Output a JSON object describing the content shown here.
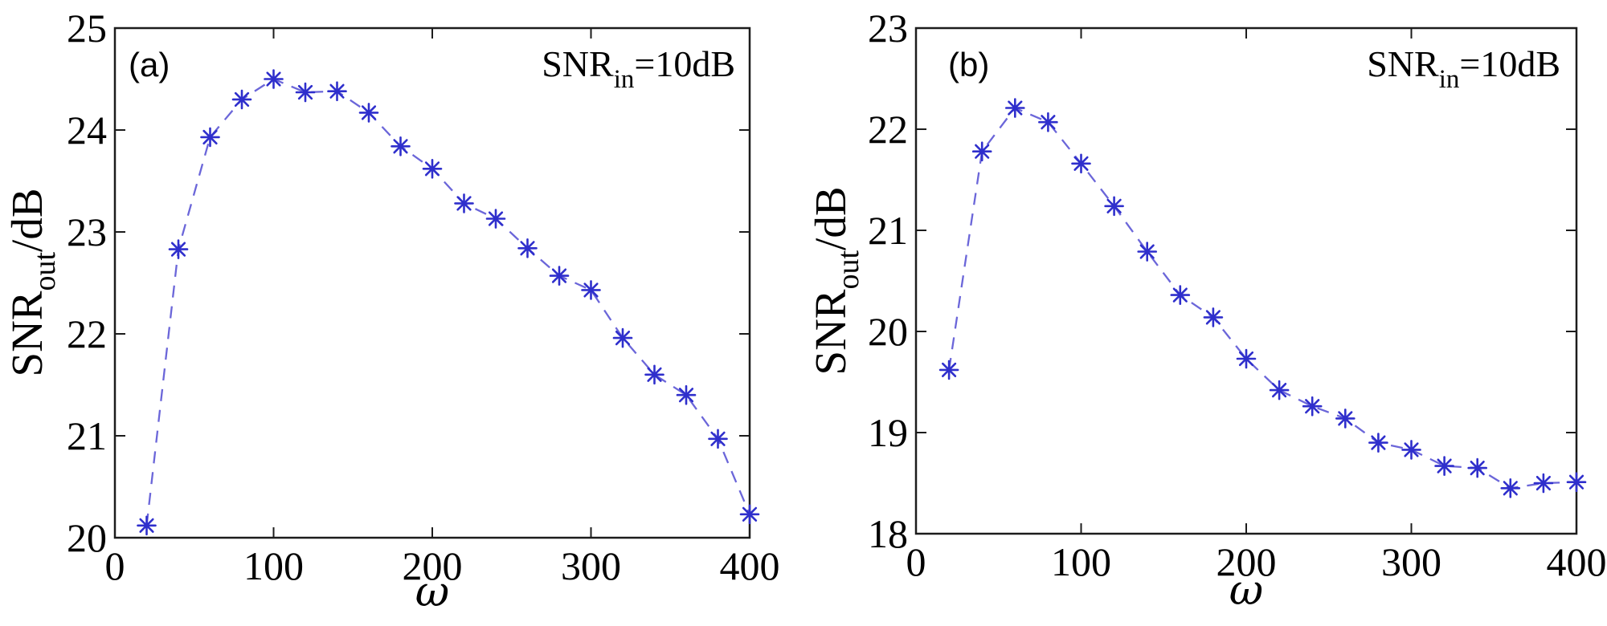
{
  "page": {
    "background": "#ffffff"
  },
  "colors": {
    "axis": "#1c1c1c",
    "marker": "#2f2fcc",
    "line": "#6b66d9"
  },
  "chart_data": [
    {
      "type": "line",
      "panel_label": "(a)",
      "annotation": "SNRin=10dB",
      "annotation_parts": {
        "main": "SNR",
        "sub": "in",
        "rest": "=10dB"
      },
      "ylabel": "SNRout/dB",
      "ylabel_parts": {
        "main": "SNR",
        "sub": "out",
        "rest": "/dB"
      },
      "xlabel": "ω",
      "xlim": [
        0,
        400
      ],
      "ylim": [
        20,
        25
      ],
      "xticks": [
        0,
        100,
        200,
        300,
        400
      ],
      "yticks": [
        20,
        21,
        22,
        23,
        24,
        25
      ],
      "grid": false,
      "legend": "none",
      "line_style": "dashed",
      "marker": "asterisk",
      "series": [
        {
          "name": "SNR_out vs omega",
          "x": [
            20,
            40,
            60,
            80,
            100,
            120,
            140,
            160,
            180,
            200,
            220,
            240,
            260,
            280,
            300,
            320,
            340,
            360,
            380,
            400
          ],
          "y": [
            20.12,
            22.83,
            23.93,
            24.3,
            24.5,
            24.37,
            24.38,
            24.17,
            23.84,
            23.62,
            23.28,
            23.13,
            22.84,
            22.57,
            22.43,
            21.96,
            21.6,
            21.4,
            20.97,
            20.23
          ]
        }
      ]
    },
    {
      "type": "line",
      "panel_label": "(b)",
      "annotation": "SNRin=10dB",
      "annotation_parts": {
        "main": "SNR",
        "sub": "in",
        "rest": "=10dB"
      },
      "ylabel": "SNRout/dB",
      "ylabel_parts": {
        "main": "SNR",
        "sub": "out",
        "rest": "/dB"
      },
      "xlabel": "ω",
      "xlim": [
        0,
        400
      ],
      "ylim": [
        18,
        23
      ],
      "xticks": [
        0,
        100,
        200,
        300,
        400
      ],
      "yticks": [
        18,
        19,
        20,
        21,
        22,
        23
      ],
      "grid": false,
      "legend": "none",
      "line_style": "dashed",
      "marker": "asterisk",
      "series": [
        {
          "name": "SNR_out vs omega",
          "x": [
            20,
            40,
            60,
            80,
            100,
            120,
            140,
            160,
            180,
            200,
            220,
            240,
            260,
            280,
            300,
            320,
            340,
            360,
            380,
            400
          ],
          "y": [
            19.62,
            21.78,
            22.21,
            22.07,
            21.66,
            21.24,
            20.79,
            20.36,
            20.14,
            19.73,
            19.42,
            19.26,
            19.14,
            18.9,
            18.83,
            18.67,
            18.65,
            18.45,
            18.5,
            18.51
          ]
        }
      ]
    }
  ]
}
